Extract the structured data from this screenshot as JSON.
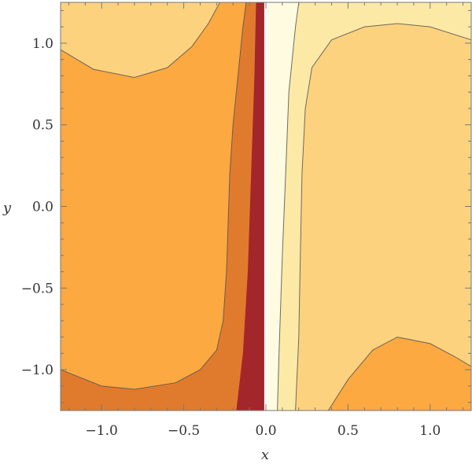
{
  "chart_data": {
    "type": "contour",
    "xlabel": "x",
    "ylabel": "y",
    "xlim": [
      -1.25,
      1.25
    ],
    "ylim": [
      -1.25,
      1.25
    ],
    "x_ticks": [
      {
        "value": -1.0,
        "label": "−1.0"
      },
      {
        "value": -0.5,
        "label": "−0.5"
      },
      {
        "value": 0.0,
        "label": "0.0"
      },
      {
        "value": 0.5,
        "label": "0.5"
      },
      {
        "value": 1.0,
        "label": "1.0"
      }
    ],
    "y_ticks": [
      {
        "value": 1.0,
        "label": "1.0"
      },
      {
        "value": 0.5,
        "label": "0.5"
      },
      {
        "value": 0.0,
        "label": "0.0"
      },
      {
        "value": -0.5,
        "label": "−0.5"
      },
      {
        "value": -1.0,
        "label": "−1.0"
      }
    ],
    "region_colors": {
      "darkest": "#a3262b",
      "dark": "#e07b2e",
      "mid": "#fba940",
      "light": "#fdd27f",
      "lighter": "#fde9a6",
      "lightest": "#fffbe1"
    },
    "contour_line_color": "#555555",
    "left_side": {
      "boundary_darkest_dark": [
        [
          -0.18,
          -1.25
        ],
        [
          -0.14,
          -0.9
        ],
        [
          -0.11,
          -0.4
        ],
        [
          -0.09,
          0.2
        ],
        [
          -0.07,
          0.8
        ],
        [
          -0.06,
          1.25
        ]
      ],
      "boundary_dark_mid": [
        [
          -1.25,
          -1.0
        ],
        [
          -1.0,
          -1.1
        ],
        [
          -0.8,
          -1.12
        ],
        [
          -0.55,
          -1.08
        ],
        [
          -0.4,
          -1.0
        ],
        [
          -0.3,
          -0.88
        ],
        [
          -0.26,
          -0.7
        ],
        [
          -0.24,
          -0.4
        ],
        [
          -0.23,
          -0.1
        ],
        [
          -0.22,
          0.2
        ],
        [
          -0.2,
          0.5
        ],
        [
          -0.17,
          0.8
        ],
        [
          -0.14,
          1.1
        ],
        [
          -0.12,
          1.25
        ]
      ],
      "boundary_mid_light": [
        [
          -1.25,
          0.96
        ],
        [
          -1.05,
          0.84
        ],
        [
          -0.8,
          0.79
        ],
        [
          -0.6,
          0.85
        ],
        [
          -0.45,
          0.98
        ],
        [
          -0.35,
          1.12
        ],
        [
          -0.28,
          1.25
        ]
      ]
    },
    "right_side": {
      "boundary_lightest_lighter": [
        [
          0.07,
          -1.25
        ],
        [
          0.08,
          -0.9
        ],
        [
          0.1,
          -0.3
        ],
        [
          0.12,
          0.2
        ],
        [
          0.14,
          0.7
        ],
        [
          0.18,
          1.1
        ],
        [
          0.2,
          1.25
        ]
      ],
      "boundary_lighter_light": [
        [
          0.18,
          -1.25
        ],
        [
          0.2,
          -0.8
        ],
        [
          0.21,
          -0.3
        ],
        [
          0.22,
          0.2
        ],
        [
          0.24,
          0.6
        ],
        [
          0.28,
          0.85
        ],
        [
          0.4,
          1.02
        ],
        [
          0.6,
          1.1
        ],
        [
          0.8,
          1.12
        ],
        [
          1.0,
          1.1
        ],
        [
          1.25,
          1.02
        ]
      ],
      "boundary_light_mid": [
        [
          0.38,
          -1.25
        ],
        [
          0.5,
          -1.06
        ],
        [
          0.65,
          -0.88
        ],
        [
          0.8,
          -0.8
        ],
        [
          1.0,
          -0.84
        ],
        [
          1.15,
          -0.92
        ],
        [
          1.25,
          -0.98
        ]
      ]
    },
    "gap": [
      -0.01,
      0.01
    ]
  }
}
